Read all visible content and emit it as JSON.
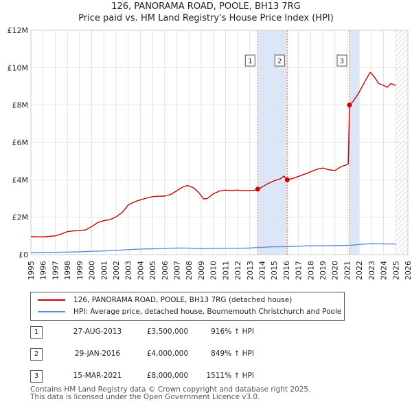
{
  "chart_data": {
    "type": "line",
    "title": "126, PANORAMA ROAD, POOLE, BH13 7RG",
    "subtitle": "Price paid vs. HM Land Registry's House Price Index (HPI)",
    "xlim": [
      1995,
      2026
    ],
    "ylim": [
      0,
      12000000
    ],
    "x_ticks": [
      "1995",
      "1996",
      "1997",
      "1998",
      "1999",
      "2000",
      "2001",
      "2002",
      "2003",
      "2004",
      "2005",
      "2006",
      "2007",
      "2008",
      "2009",
      "2010",
      "2011",
      "2012",
      "2013",
      "2014",
      "2015",
      "2016",
      "2017",
      "2018",
      "2019",
      "2020",
      "2021",
      "2022",
      "2023",
      "2024",
      "2025",
      "2026"
    ],
    "y_ticks": [
      {
        "value": 0,
        "label": "£0"
      },
      {
        "value": 2000000,
        "label": "£2M"
      },
      {
        "value": 4000000,
        "label": "£4M"
      },
      {
        "value": 6000000,
        "label": "£6M"
      },
      {
        "value": 8000000,
        "label": "£8M"
      },
      {
        "value": 10000000,
        "label": "£10M"
      },
      {
        "value": 12000000,
        "label": "£12M"
      }
    ],
    "grid": true,
    "data_end_year": 2025.0,
    "colors": {
      "property": "#cc0000",
      "hpi": "#5b8fd4",
      "band": "#dde6f7",
      "vline": "#e07070",
      "grid": "#e2e2e2",
      "hatch": "#bbbbbb"
    },
    "series": [
      {
        "name": "126, PANORAMA ROAD, POOLE, BH13 7RG (detached house)",
        "color": "#cc0000",
        "points": [
          [
            1995.0,
            960000
          ],
          [
            1995.5,
            955000
          ],
          [
            1996.0,
            950000
          ],
          [
            1996.5,
            975000
          ],
          [
            1997.0,
            1000000
          ],
          [
            1997.5,
            1100000
          ],
          [
            1998.0,
            1230000
          ],
          [
            1998.5,
            1270000
          ],
          [
            1999.0,
            1290000
          ],
          [
            1999.5,
            1320000
          ],
          [
            2000.0,
            1500000
          ],
          [
            2000.5,
            1720000
          ],
          [
            2001.0,
            1820000
          ],
          [
            2001.5,
            1870000
          ],
          [
            2002.0,
            2020000
          ],
          [
            2002.5,
            2250000
          ],
          [
            2003.0,
            2650000
          ],
          [
            2003.5,
            2820000
          ],
          [
            2004.0,
            2930000
          ],
          [
            2004.5,
            3020000
          ],
          [
            2005.0,
            3100000
          ],
          [
            2005.5,
            3120000
          ],
          [
            2006.0,
            3130000
          ],
          [
            2006.5,
            3220000
          ],
          [
            2007.0,
            3420000
          ],
          [
            2007.5,
            3620000
          ],
          [
            2007.9,
            3700000
          ],
          [
            2008.4,
            3560000
          ],
          [
            2008.8,
            3320000
          ],
          [
            2009.2,
            2980000
          ],
          [
            2009.5,
            3000000
          ],
          [
            2010.0,
            3250000
          ],
          [
            2010.5,
            3400000
          ],
          [
            2011.0,
            3450000
          ],
          [
            2011.5,
            3430000
          ],
          [
            2012.0,
            3450000
          ],
          [
            2012.5,
            3420000
          ],
          [
            2013.0,
            3430000
          ],
          [
            2013.4,
            3440000
          ],
          [
            2013.65,
            3500000
          ],
          [
            2014.0,
            3620000
          ],
          [
            2014.5,
            3800000
          ],
          [
            2015.0,
            3950000
          ],
          [
            2015.5,
            4050000
          ],
          [
            2015.8,
            4200000
          ],
          [
            2016.08,
            4000000
          ],
          [
            2016.5,
            4070000
          ],
          [
            2017.0,
            4180000
          ],
          [
            2017.5,
            4300000
          ],
          [
            2018.0,
            4430000
          ],
          [
            2018.5,
            4560000
          ],
          [
            2019.0,
            4630000
          ],
          [
            2019.5,
            4540000
          ],
          [
            2020.0,
            4500000
          ],
          [
            2020.5,
            4700000
          ],
          [
            2021.0,
            4820000
          ],
          [
            2021.1,
            4850000
          ],
          [
            2021.2,
            8000000
          ],
          [
            2021.5,
            8200000
          ],
          [
            2022.0,
            8700000
          ],
          [
            2022.5,
            9300000
          ],
          [
            2022.9,
            9750000
          ],
          [
            2023.2,
            9550000
          ],
          [
            2023.6,
            9150000
          ],
          [
            2024.0,
            9050000
          ],
          [
            2024.3,
            8950000
          ],
          [
            2024.6,
            9150000
          ],
          [
            2025.0,
            9050000
          ]
        ]
      },
      {
        "name": "HPI: Average price, detached house, Bournemouth Christchurch and Poole",
        "color": "#5b8fd4",
        "points": [
          [
            1995.0,
            110000
          ],
          [
            1996.0,
            112000
          ],
          [
            1997.0,
            122000
          ],
          [
            1998.0,
            135000
          ],
          [
            1999.0,
            150000
          ],
          [
            2000.0,
            175000
          ],
          [
            2001.0,
            195000
          ],
          [
            2002.0,
            225000
          ],
          [
            2003.0,
            265000
          ],
          [
            2004.0,
            300000
          ],
          [
            2005.0,
            312000
          ],
          [
            2006.0,
            325000
          ],
          [
            2007.0,
            348000
          ],
          [
            2008.0,
            345000
          ],
          [
            2009.0,
            315000
          ],
          [
            2010.0,
            335000
          ],
          [
            2011.0,
            340000
          ],
          [
            2012.0,
            340000
          ],
          [
            2013.0,
            348000
          ],
          [
            2013.65,
            382000
          ],
          [
            2014.0,
            390000
          ],
          [
            2015.0,
            420000
          ],
          [
            2016.08,
            428000
          ],
          [
            2017.0,
            450000
          ],
          [
            2018.0,
            470000
          ],
          [
            2019.0,
            475000
          ],
          [
            2020.0,
            480000
          ],
          [
            2021.2,
            496000
          ],
          [
            2022.0,
            540000
          ],
          [
            2023.0,
            585000
          ],
          [
            2024.0,
            575000
          ],
          [
            2025.0,
            570000
          ]
        ]
      }
    ],
    "sales": [
      {
        "label": "1",
        "x": 2013.65,
        "price": 3500000
      },
      {
        "label": "2",
        "x": 2016.08,
        "price": 4000000
      },
      {
        "label": "3",
        "x": 2021.2,
        "price": 8000000
      }
    ],
    "shaded_ranges": [
      [
        2013.65,
        2016.08
      ],
      [
        2021.2,
        2022.0
      ]
    ]
  },
  "legend": {
    "property_label": "126, PANORAMA ROAD, POOLE, BH13 7RG (detached house)",
    "hpi_label": "HPI: Average price, detached house, Bournemouth Christchurch and Poole"
  },
  "transactions": [
    {
      "num": "1",
      "date": "27-AUG-2013",
      "price": "£3,500,000",
      "hpi": "916% ↑ HPI"
    },
    {
      "num": "2",
      "date": "29-JAN-2016",
      "price": "£4,000,000",
      "hpi": "849% ↑ HPI"
    },
    {
      "num": "3",
      "date": "15-MAR-2021",
      "price": "£8,000,000",
      "hpi": "1511% ↑ HPI"
    }
  ],
  "footer": {
    "line1": "Contains HM Land Registry data © Crown copyright and database right 2025.",
    "line2": "This data is licensed under the Open Government Licence v3.0."
  }
}
